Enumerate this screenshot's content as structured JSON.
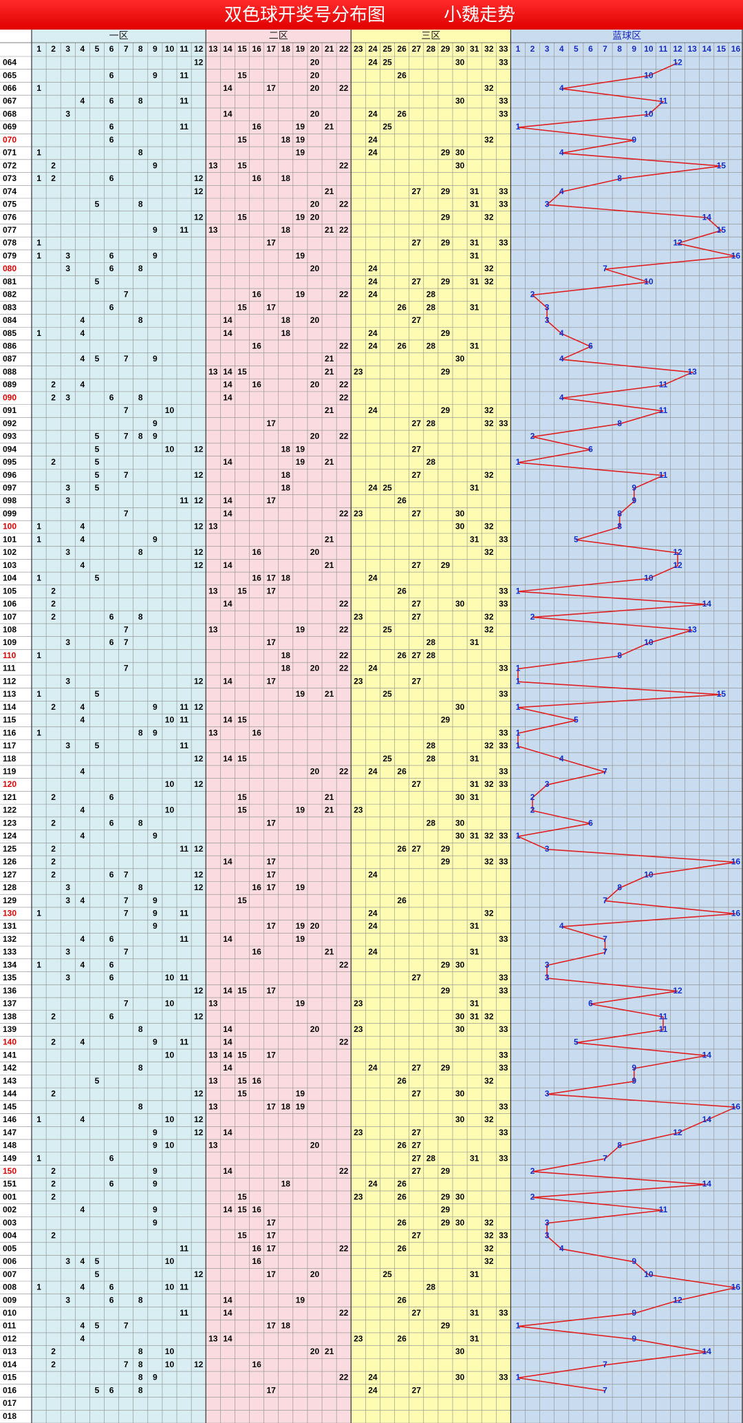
{
  "header": {
    "title": "双色球开奖号分布图",
    "subtitle": "小魏走势"
  },
  "zones": [
    {
      "label": "一区",
      "numbers": [
        1,
        2,
        3,
        4,
        5,
        6,
        7,
        8,
        9,
        10,
        11,
        12
      ]
    },
    {
      "label": "二区",
      "numbers": [
        13,
        14,
        15,
        16,
        17,
        18,
        19,
        20,
        21,
        22
      ]
    },
    {
      "label": "三区",
      "numbers": [
        23,
        24,
        25,
        26,
        27,
        28,
        29,
        30,
        31,
        32,
        33
      ]
    },
    {
      "label": "蓝球区",
      "numbers": [
        1,
        2,
        3,
        4,
        5,
        6,
        7,
        8,
        9,
        10,
        11,
        12,
        13,
        14,
        15,
        16
      ]
    }
  ],
  "rows": [
    {
      "period": "064",
      "red": [
        12,
        20,
        24,
        25,
        30,
        33
      ],
      "blue": 12
    },
    {
      "period": "065",
      "red": [
        6,
        9,
        11,
        15,
        20,
        26
      ],
      "blue": 10
    },
    {
      "period": "066",
      "red": [
        1,
        14,
        17,
        20,
        22,
        32
      ],
      "blue": 4
    },
    {
      "period": "067",
      "red": [
        4,
        6,
        8,
        11,
        30,
        33
      ],
      "blue": 11
    },
    {
      "period": "068",
      "red": [
        3,
        14,
        20,
        24,
        26,
        33
      ],
      "blue": 10
    },
    {
      "period": "069",
      "red": [
        6,
        11,
        16,
        19,
        21,
        25
      ],
      "blue": 1
    },
    {
      "period": "070",
      "red": [
        6,
        15,
        18,
        19,
        24,
        32
      ],
      "blue": 9,
      "highlight": true
    },
    {
      "period": "071",
      "red": [
        1,
        8,
        19,
        24,
        29,
        30
      ],
      "blue": 4
    },
    {
      "period": "072",
      "red": [
        2,
        9,
        13,
        15,
        22,
        30
      ],
      "blue": 15
    },
    {
      "period": "073",
      "red": [
        1,
        2,
        6,
        12,
        16,
        18
      ],
      "blue": 8
    },
    {
      "period": "074",
      "red": [
        12,
        21,
        27,
        29,
        31,
        33
      ],
      "blue": 4
    },
    {
      "period": "075",
      "red": [
        5,
        8,
        20,
        22,
        31,
        33
      ],
      "blue": 3
    },
    {
      "period": "076",
      "red": [
        12,
        15,
        19,
        20,
        29,
        32
      ],
      "blue": 14
    },
    {
      "period": "077",
      "red": [
        9,
        11,
        13,
        18,
        21,
        22
      ],
      "blue": 15
    },
    {
      "period": "078",
      "red": [
        1,
        17,
        27,
        29,
        31,
        33
      ],
      "blue": 12
    },
    {
      "period": "079",
      "red": [
        1,
        3,
        6,
        9,
        19,
        31
      ],
      "blue": 16
    },
    {
      "period": "080",
      "red": [
        3,
        6,
        8,
        20,
        24,
        32
      ],
      "blue": 7,
      "highlight": true
    },
    {
      "period": "081",
      "red": [
        5,
        24,
        27,
        29,
        31,
        32
      ],
      "blue": 10
    },
    {
      "period": "082",
      "red": [
        7,
        16,
        19,
        22,
        24,
        28
      ],
      "blue": 2
    },
    {
      "period": "083",
      "red": [
        6,
        15,
        17,
        26,
        28,
        31
      ],
      "blue": 3
    },
    {
      "period": "084",
      "red": [
        4,
        8,
        14,
        18,
        20,
        27
      ],
      "blue": 3
    },
    {
      "period": "085",
      "red": [
        1,
        4,
        14,
        18,
        24,
        29
      ],
      "blue": 4
    },
    {
      "period": "086",
      "red": [
        16,
        22,
        24,
        26,
        28,
        31
      ],
      "blue": 6
    },
    {
      "period": "087",
      "red": [
        4,
        5,
        7,
        9,
        21,
        30
      ],
      "blue": 4
    },
    {
      "period": "088",
      "red": [
        13,
        14,
        15,
        21,
        23,
        29
      ],
      "blue": 13
    },
    {
      "period": "089",
      "red": [
        2,
        4,
        14,
        16,
        20,
        22
      ],
      "blue": 11
    },
    {
      "period": "090",
      "red": [
        2,
        3,
        6,
        8,
        14,
        22
      ],
      "blue": 4,
      "highlight": true
    },
    {
      "period": "091",
      "red": [
        7,
        10,
        21,
        24,
        29,
        32
      ],
      "blue": 11
    },
    {
      "period": "092",
      "red": [
        9,
        17,
        27,
        28,
        32,
        33
      ],
      "blue": 8
    },
    {
      "period": "093",
      "red": [
        5,
        7,
        8,
        9,
        20,
        22
      ],
      "blue": 2
    },
    {
      "period": "094",
      "red": [
        5,
        10,
        12,
        18,
        19,
        27
      ],
      "blue": 6
    },
    {
      "period": "095",
      "red": [
        2,
        5,
        14,
        19,
        21,
        28
      ],
      "blue": 1
    },
    {
      "period": "096",
      "red": [
        5,
        7,
        12,
        18,
        27,
        32
      ],
      "blue": 11
    },
    {
      "period": "097",
      "red": [
        3,
        5,
        18,
        24,
        25,
        31
      ],
      "blue": 9
    },
    {
      "period": "098",
      "red": [
        3,
        11,
        12,
        14,
        17,
        26
      ],
      "blue": 9
    },
    {
      "period": "099",
      "red": [
        7,
        14,
        22,
        23,
        27,
        30
      ],
      "blue": 8
    },
    {
      "period": "100",
      "red": [
        1,
        4,
        12,
        13,
        30,
        32
      ],
      "blue": 8,
      "highlight": true
    },
    {
      "period": "101",
      "red": [
        1,
        4,
        9,
        21,
        31,
        33
      ],
      "blue": 5
    },
    {
      "period": "102",
      "red": [
        3,
        8,
        12,
        16,
        20,
        32
      ],
      "blue": 12
    },
    {
      "period": "103",
      "red": [
        4,
        12,
        14,
        21,
        27,
        29
      ],
      "blue": 12
    },
    {
      "period": "104",
      "red": [
        1,
        5,
        16,
        17,
        18,
        24
      ],
      "blue": 10
    },
    {
      "period": "105",
      "red": [
        2,
        13,
        15,
        17,
        26,
        33
      ],
      "blue": 1
    },
    {
      "period": "106",
      "red": [
        2,
        14,
        22,
        27,
        30,
        33
      ],
      "blue": 14
    },
    {
      "period": "107",
      "red": [
        2,
        6,
        8,
        23,
        27,
        32
      ],
      "blue": 2
    },
    {
      "period": "108",
      "red": [
        7,
        13,
        19,
        22,
        25,
        32
      ],
      "blue": 13
    },
    {
      "period": "109",
      "red": [
        3,
        6,
        7,
        17,
        28,
        31
      ],
      "blue": 10
    },
    {
      "period": "110",
      "red": [
        1,
        18,
        22,
        26,
        27,
        28
      ],
      "blue": 8,
      "highlight": true
    },
    {
      "period": "111",
      "red": [
        7,
        18,
        20,
        22,
        24,
        33
      ],
      "blue": 1
    },
    {
      "period": "112",
      "red": [
        3,
        12,
        14,
        17,
        23,
        27
      ],
      "blue": 1
    },
    {
      "period": "113",
      "red": [
        1,
        5,
        19,
        21,
        25,
        33
      ],
      "blue": 15
    },
    {
      "period": "114",
      "red": [
        2,
        4,
        9,
        11,
        12,
        30
      ],
      "blue": 1
    },
    {
      "period": "115",
      "red": [
        4,
        10,
        11,
        14,
        15,
        29
      ],
      "blue": 5
    },
    {
      "period": "116",
      "red": [
        1,
        8,
        9,
        13,
        16,
        33
      ],
      "blue": 1
    },
    {
      "period": "117",
      "red": [
        3,
        5,
        11,
        28,
        32,
        33
      ],
      "blue": 1
    },
    {
      "period": "118",
      "red": [
        12,
        14,
        15,
        25,
        28,
        31
      ],
      "blue": 4
    },
    {
      "period": "119",
      "red": [
        4,
        20,
        22,
        24,
        26,
        33
      ],
      "blue": 7
    },
    {
      "period": "120",
      "red": [
        10,
        12,
        27,
        31,
        32,
        33
      ],
      "blue": 3,
      "highlight": true
    },
    {
      "period": "121",
      "red": [
        2,
        6,
        15,
        21,
        30,
        31
      ],
      "blue": 2
    },
    {
      "period": "122",
      "red": [
        4,
        10,
        15,
        19,
        21,
        23
      ],
      "blue": 2
    },
    {
      "period": "123",
      "red": [
        2,
        6,
        8,
        17,
        28,
        30
      ],
      "blue": 6
    },
    {
      "period": "124",
      "red": [
        4,
        9,
        30,
        31,
        32,
        33
      ],
      "blue": 1
    },
    {
      "period": "125",
      "red": [
        2,
        11,
        12,
        26,
        27,
        29
      ],
      "blue": 3
    },
    {
      "period": "126",
      "red": [
        2,
        14,
        17,
        29,
        32,
        33
      ],
      "blue": 16
    },
    {
      "period": "127",
      "red": [
        2,
        6,
        7,
        12,
        17,
        24
      ],
      "blue": 10
    },
    {
      "period": "128",
      "red": [
        3,
        8,
        12,
        16,
        17,
        19
      ],
      "blue": 8
    },
    {
      "period": "129",
      "red": [
        3,
        4,
        7,
        9,
        15,
        26
      ],
      "blue": 7
    },
    {
      "period": "130",
      "red": [
        1,
        7,
        9,
        11,
        24,
        32
      ],
      "blue": 16,
      "highlight": true
    },
    {
      "period": "131",
      "red": [
        9,
        17,
        19,
        20,
        24,
        31
      ],
      "blue": 4
    },
    {
      "period": "132",
      "red": [
        4,
        6,
        11,
        14,
        19,
        33
      ],
      "blue": 7
    },
    {
      "period": "133",
      "red": [
        3,
        7,
        16,
        21,
        24,
        31
      ],
      "blue": 7
    },
    {
      "period": "134",
      "red": [
        1,
        4,
        6,
        22,
        29,
        30
      ],
      "blue": 3
    },
    {
      "period": "135",
      "red": [
        3,
        6,
        10,
        11,
        27,
        33
      ],
      "blue": 3
    },
    {
      "period": "136",
      "red": [
        12,
        14,
        15,
        17,
        29,
        33
      ],
      "blue": 12
    },
    {
      "period": "137",
      "red": [
        7,
        10,
        13,
        19,
        23,
        31
      ],
      "blue": 6
    },
    {
      "period": "138",
      "red": [
        2,
        6,
        12,
        30,
        31,
        32
      ],
      "blue": 11
    },
    {
      "period": "139",
      "red": [
        8,
        14,
        20,
        23,
        30,
        33
      ],
      "blue": 11
    },
    {
      "period": "140",
      "red": [
        2,
        4,
        9,
        11,
        14,
        22
      ],
      "blue": 5,
      "highlight": true
    },
    {
      "period": "141",
      "red": [
        10,
        13,
        14,
        15,
        17,
        33
      ],
      "blue": 14
    },
    {
      "period": "142",
      "red": [
        8,
        14,
        24,
        27,
        29,
        33
      ],
      "blue": 9
    },
    {
      "period": "143",
      "red": [
        5,
        13,
        15,
        16,
        26,
        32
      ],
      "blue": 9
    },
    {
      "period": "144",
      "red": [
        2,
        12,
        15,
        19,
        27,
        30
      ],
      "blue": 3
    },
    {
      "period": "145",
      "red": [
        8,
        13,
        17,
        18,
        19,
        33
      ],
      "blue": 16
    },
    {
      "period": "146",
      "red": [
        1,
        4,
        10,
        12,
        30,
        32
      ],
      "blue": 14
    },
    {
      "period": "147",
      "red": [
        9,
        12,
        14,
        23,
        27,
        33
      ],
      "blue": 12
    },
    {
      "period": "148",
      "red": [
        9,
        10,
        13,
        20,
        26,
        27
      ],
      "blue": 8
    },
    {
      "period": "149",
      "red": [
        1,
        6,
        27,
        28,
        31,
        33
      ],
      "blue": 7
    },
    {
      "period": "150",
      "red": [
        2,
        9,
        14,
        22,
        27,
        29
      ],
      "blue": 2,
      "highlight": true
    },
    {
      "period": "151",
      "red": [
        2,
        6,
        9,
        18,
        24,
        26
      ],
      "blue": 14
    },
    {
      "period": "001",
      "red": [
        2,
        15,
        23,
        26,
        29,
        30
      ],
      "blue": 2
    },
    {
      "period": "002",
      "red": [
        4,
        9,
        14,
        15,
        16,
        29
      ],
      "blue": 11
    },
    {
      "period": "003",
      "red": [
        9,
        17,
        26,
        29,
        30,
        32
      ],
      "blue": 3
    },
    {
      "period": "004",
      "red": [
        2,
        15,
        17,
        27,
        32,
        33
      ],
      "blue": 3
    },
    {
      "period": "005",
      "red": [
        11,
        16,
        17,
        22,
        26,
        32
      ],
      "blue": 4
    },
    {
      "period": "006",
      "red": [
        3,
        4,
        5,
        10,
        16,
        32
      ],
      "blue": 9
    },
    {
      "period": "007",
      "red": [
        5,
        12,
        17,
        20,
        25,
        31
      ],
      "blue": 10
    },
    {
      "period": "008",
      "red": [
        1,
        4,
        6,
        10,
        11,
        28
      ],
      "blue": 16
    },
    {
      "period": "009",
      "red": [
        3,
        6,
        8,
        14,
        19,
        26
      ],
      "blue": 12
    },
    {
      "period": "010",
      "red": [
        11,
        14,
        22,
        27,
        31,
        33
      ],
      "blue": 9
    },
    {
      "period": "011",
      "red": [
        4,
        5,
        7,
        17,
        18,
        29
      ],
      "blue": 1
    },
    {
      "period": "012",
      "red": [
        4,
        13,
        14,
        23,
        26,
        31
      ],
      "blue": 9
    },
    {
      "period": "013",
      "red": [
        2,
        8,
        10,
        20,
        21,
        30
      ],
      "blue": 14
    },
    {
      "period": "014",
      "red": [
        2,
        7,
        8,
        10,
        12,
        16
      ],
      "blue": 7
    },
    {
      "period": "015",
      "red": [
        8,
        9,
        22,
        24,
        30,
        33
      ],
      "blue": 1
    },
    {
      "period": "016",
      "red": [
        5,
        6,
        8,
        17,
        24,
        27
      ],
      "blue": 7
    },
    {
      "period": "017",
      "red": [],
      "blue": null
    },
    {
      "period": "018",
      "red": [],
      "blue": null
    }
  ]
}
